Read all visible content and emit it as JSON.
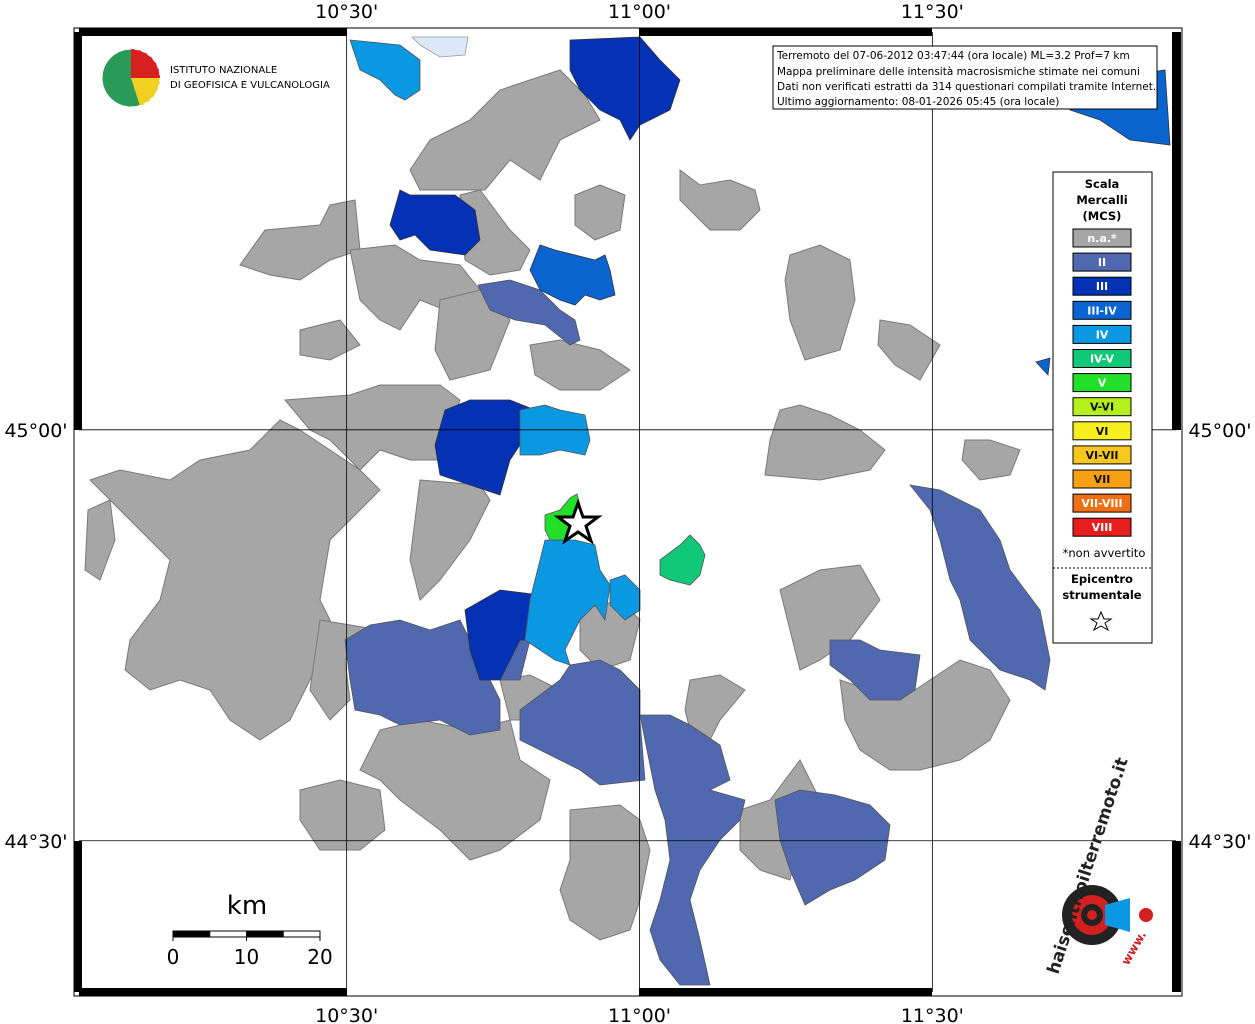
{
  "map": {
    "lon_ticks": [
      {
        "value": 10.5,
        "label": "10°30'"
      },
      {
        "value": 11,
        "label": "11°00'"
      },
      {
        "value": 11.5,
        "label": "11°30'"
      }
    ],
    "lat_ticks": [
      {
        "value": 45,
        "label": "45°00'"
      },
      {
        "value": 44.5,
        "label": "44°30'"
      }
    ],
    "lon_range": [
      10.043,
      11.916
    ],
    "lat_range": [
      44.316,
      45.484
    ]
  },
  "header": {
    "institute": [
      "ISTITUTO NAZIONALE",
      "DI GEOFISICA E VULCANOLOGIA"
    ]
  },
  "info": [
    "Terremoto del 07-06-2012 03:47:44 (ora locale) ML=3.2 Prof=7 km",
    "Mappa preliminare delle intensità macrosismiche stimate nei comuni",
    "Dati non verificati estratti da 314 questionari compilati tramite Internet.",
    "Ultimo aggiornamento: 08-01-2026 05:45 (ora locale)"
  ],
  "legend": {
    "title": [
      "Scala",
      "Mercalli",
      "(MCS)"
    ],
    "items": [
      {
        "label": "n.a.*",
        "color": "#a6a6a6"
      },
      {
        "label": "II",
        "color": "#4f68b0"
      },
      {
        "label": "III",
        "color": "#0532b4"
      },
      {
        "label": "III-IV",
        "color": "#0a64d0"
      },
      {
        "label": "IV",
        "color": "#0a98e2"
      },
      {
        "label": "IV-V",
        "color": "#10c878"
      },
      {
        "label": "V",
        "color": "#22e02a"
      },
      {
        "label": "V-VI",
        "color": "#b4f01e"
      },
      {
        "label": "VI",
        "color": "#f8f01e"
      },
      {
        "label": "VI-VII",
        "color": "#f8c81e"
      },
      {
        "label": "VII",
        "color": "#f8a014"
      },
      {
        "label": "VII-VIII",
        "color": "#f06e14"
      },
      {
        "label": "VIII",
        "color": "#e81e1e"
      }
    ],
    "note": "*non avvertito",
    "epicenter_title": [
      "Epicentro",
      "strumentale"
    ]
  },
  "scale_bar": {
    "unit": "km",
    "ticks": [
      0,
      10,
      20
    ]
  },
  "logo": {
    "text": "haisentitoilterremoto.it",
    "url_prefix": "www."
  }
}
